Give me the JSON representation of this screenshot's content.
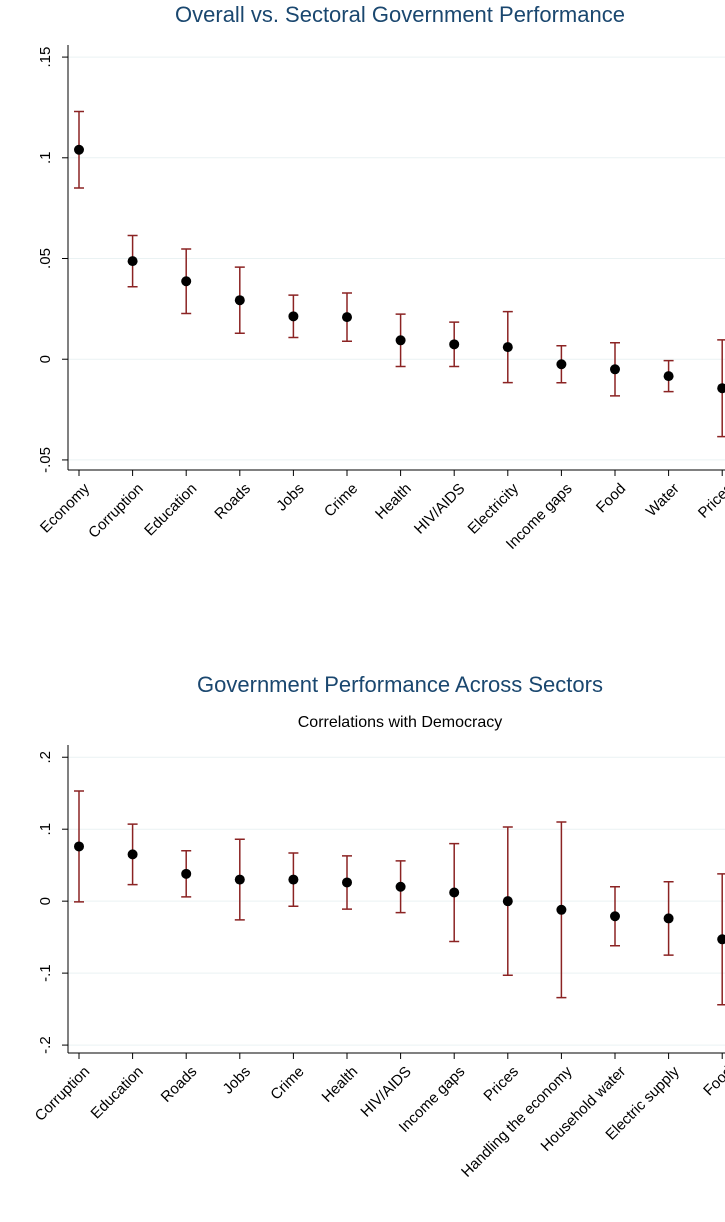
{
  "chart_data": [
    {
      "type": "errorbar",
      "title": "Overall vs. Sectoral Government Performance",
      "categories": [
        "Economy",
        "Corruption",
        "Education",
        "Roads",
        "Jobs",
        "Crime",
        "Health",
        "HIV/AIDS",
        "Electricity",
        "Income gaps",
        "Food",
        "Water",
        "Prices"
      ],
      "values": [
        0.104,
        0.0487,
        0.0387,
        0.0293,
        0.0213,
        0.0209,
        0.0094,
        0.0074,
        0.006,
        -0.0025,
        -0.005,
        -0.0084,
        -0.0144
      ],
      "errors": [
        0.019,
        0.0127,
        0.016,
        0.0164,
        0.0105,
        0.012,
        0.013,
        0.011,
        0.0176,
        0.0092,
        0.0132,
        0.0077,
        0.024
      ],
      "color": "#000000",
      "error_color": "#8b2323",
      "ylim": [
        -0.055,
        0.156
      ],
      "yticks": [
        {
          "value": -0.05,
          "label": "-.05"
        },
        0,
        {
          "value": 0.05,
          "label": ".05"
        },
        {
          "value": 0.1,
          "label": ".1"
        },
        {
          "value": 0.15,
          "label": ".15"
        }
      ],
      "grid": true
    },
    {
      "type": "errorbar",
      "title": "Government Performance Across Sectors",
      "subtitle": "Correlations with Democracy",
      "categories": [
        "Corruption",
        "Education",
        "Roads",
        "Jobs",
        "Crime",
        "Health",
        "HIV/AIDS",
        "Income gaps",
        "Prices",
        "Handling the economy",
        "Household water",
        "Electric supply",
        "Food"
      ],
      "values": [
        0.076,
        0.065,
        0.038,
        0.03,
        0.03,
        0.026,
        0.02,
        0.012,
        0.0,
        -0.012,
        -0.021,
        -0.024,
        -0.053
      ],
      "errors": [
        0.077,
        0.042,
        0.032,
        0.056,
        0.037,
        0.037,
        0.036,
        0.068,
        0.103,
        0.122,
        0.041,
        0.051,
        0.091
      ],
      "color": "#000000",
      "error_color": "#8b2323",
      "ylim": [
        -0.211,
        0.217
      ],
      "yticks": [
        {
          "value": -0.2,
          "label": "-.2"
        },
        {
          "value": -0.1,
          "label": "-.1"
        },
        0,
        {
          "value": 0.1,
          "label": ".1"
        },
        {
          "value": 0.2,
          "label": ".2"
        }
      ],
      "grid": true
    }
  ]
}
